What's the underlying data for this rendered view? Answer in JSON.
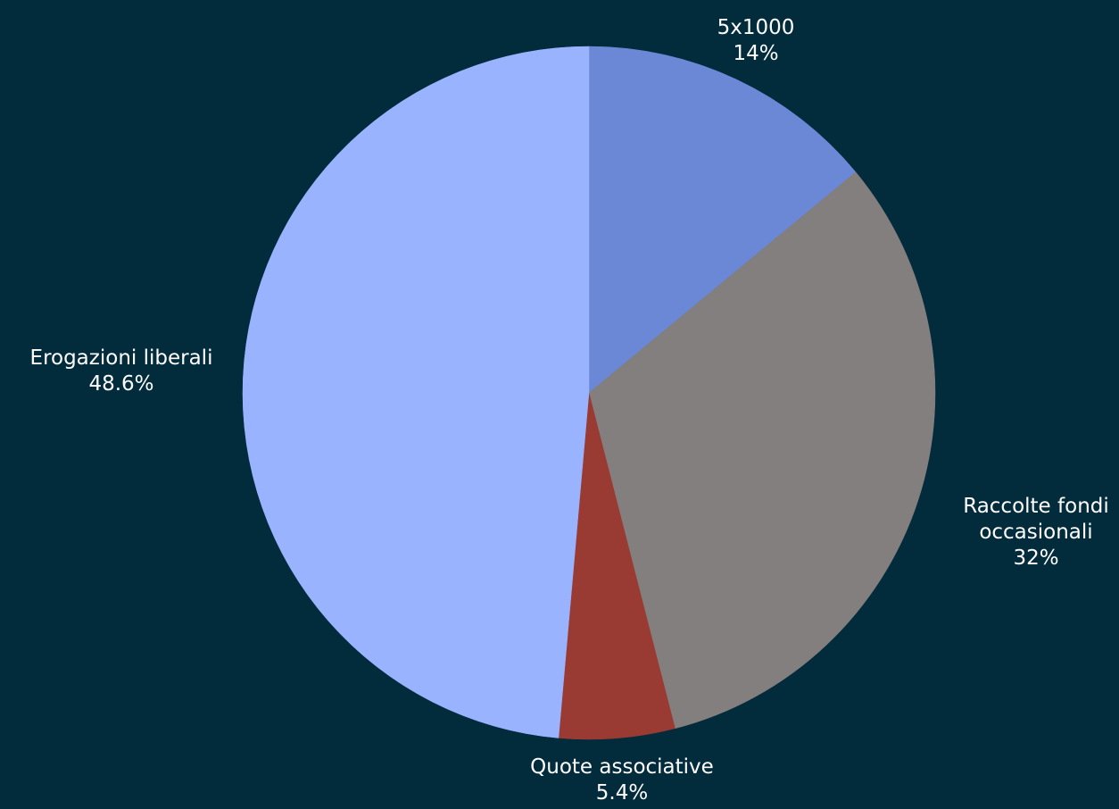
{
  "chart_data": {
    "type": "pie",
    "background": "#022b3c",
    "slices": [
      {
        "label": [
          "5x1000"
        ],
        "value_label": "14%",
        "value": 14.0,
        "color": "#6b88d6"
      },
      {
        "label": [
          "Raccolte fondi",
          "occasionali"
        ],
        "value_label": "32%",
        "value": 32.0,
        "color": "#837f7e"
      },
      {
        "label": [
          "Quote associative"
        ],
        "value_label": "5.4%",
        "value": 5.4,
        "color": "#993b33"
      },
      {
        "label": [
          "Erogazioni liberali"
        ],
        "value_label": "48.6%",
        "value": 48.6,
        "color": "#99b3ff"
      }
    ]
  }
}
